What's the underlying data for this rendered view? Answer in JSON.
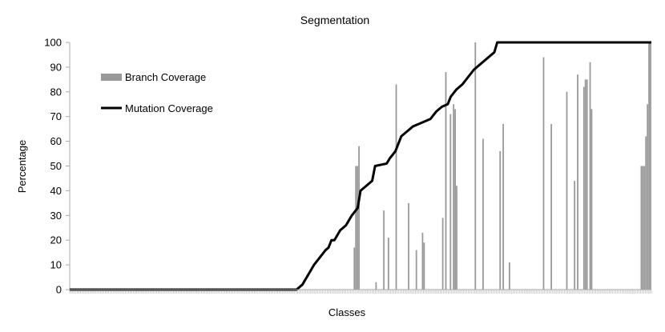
{
  "chart_data": {
    "type": "bar",
    "title": "Segmentation",
    "xlabel": "Classes",
    "ylabel": "Percentage",
    "ylim": [
      0,
      100
    ],
    "yticks": [
      0,
      10,
      20,
      30,
      40,
      50,
      60,
      70,
      80,
      90,
      100
    ],
    "grid": false,
    "legend_position": "top-left",
    "series": [
      {
        "name": "Branch Coverage",
        "kind": "bar",
        "color": "#999999",
        "values": [
          0,
          0,
          0,
          0,
          0,
          0,
          0,
          0,
          0,
          0,
          0,
          0,
          0,
          0,
          0,
          0,
          0,
          0,
          0,
          0,
          0,
          0,
          0,
          0,
          0,
          0,
          0,
          0,
          0,
          0,
          0,
          0,
          0,
          0,
          0,
          0,
          0,
          0,
          0,
          0,
          0,
          0,
          0,
          0,
          0,
          0,
          0,
          0,
          0,
          0,
          0,
          0,
          0,
          0,
          0,
          0,
          0,
          0,
          0,
          0,
          0,
          0,
          0,
          0,
          0,
          0,
          0,
          0,
          0,
          0,
          0,
          0,
          0,
          0,
          0,
          0,
          0,
          0,
          0,
          0,
          0,
          0,
          0,
          0,
          0,
          0,
          0,
          0,
          0,
          0,
          0,
          0,
          0,
          0,
          0,
          0,
          0,
          0,
          0,
          0,
          0,
          0,
          0,
          0,
          0,
          0,
          0,
          0,
          0,
          0,
          0,
          0,
          0,
          0,
          0,
          0,
          0,
          0,
          0,
          0,
          0,
          0,
          0,
          0,
          0,
          0,
          0,
          0,
          0,
          0,
          0,
          0,
          0,
          0,
          0,
          0,
          0,
          0,
          0,
          0,
          0,
          0,
          0,
          0,
          0,
          0,
          0,
          0,
          0,
          0,
          0,
          0,
          0,
          0,
          0,
          0,
          0,
          0,
          0,
          0,
          0,
          0,
          0,
          0,
          0,
          0,
          0,
          0,
          0,
          0,
          0,
          0,
          0,
          0,
          0,
          0,
          0,
          0,
          0,
          0,
          0,
          0,
          0,
          17,
          50,
          50,
          58,
          0,
          0,
          0,
          0,
          0,
          0,
          0,
          0,
          0,
          0,
          3,
          0,
          0,
          0,
          0,
          32,
          0,
          0,
          21,
          0,
          0,
          0,
          0,
          83,
          0,
          0,
          0,
          0,
          0,
          0,
          0,
          35,
          0,
          0,
          0,
          0,
          16,
          0,
          0,
          0,
          23,
          19,
          0,
          0,
          0,
          0,
          0,
          0,
          0,
          0,
          0,
          0,
          0,
          29,
          0,
          88,
          0,
          0,
          71,
          0,
          75,
          73,
          42,
          0,
          0,
          0,
          0,
          0,
          0,
          0,
          0,
          0,
          0,
          0,
          100,
          0,
          0,
          0,
          0,
          61,
          0,
          0,
          0,
          0,
          0,
          0,
          0,
          0,
          0,
          0,
          56,
          0,
          67,
          0,
          0,
          0,
          11,
          0,
          0,
          0,
          0,
          0,
          0,
          0,
          0,
          0,
          0,
          0,
          0,
          0,
          0,
          0,
          0,
          0,
          0,
          0,
          0,
          0,
          94,
          0,
          0,
          0,
          0,
          67,
          0,
          0,
          0,
          0,
          0,
          0,
          0,
          0,
          0,
          80,
          0,
          0,
          0,
          0,
          44,
          0,
          87,
          0,
          0,
          0,
          82,
          85,
          85,
          0,
          92,
          73,
          0,
          0,
          0,
          0,
          0,
          0,
          0,
          0,
          0,
          0,
          0,
          0,
          0,
          0,
          0,
          0,
          0,
          0,
          0,
          0,
          0,
          0,
          0,
          0,
          0,
          0,
          0,
          0,
          0,
          0,
          0,
          50,
          50,
          50,
          62,
          75,
          100,
          100
        ]
      },
      {
        "name": "Mutation Coverage",
        "kind": "line",
        "color": "#000000",
        "points": [
          [
            0,
            0
          ],
          [
            78,
            0
          ],
          [
            80,
            2
          ],
          [
            82,
            6
          ],
          [
            84,
            10
          ],
          [
            86,
            13
          ],
          [
            88,
            16
          ],
          [
            89,
            17
          ],
          [
            90,
            20
          ],
          [
            91,
            20
          ],
          [
            93,
            24
          ],
          [
            95,
            26
          ],
          [
            97,
            30
          ],
          [
            99,
            33
          ],
          [
            100,
            40
          ],
          [
            102,
            42
          ],
          [
            103,
            43
          ],
          [
            104,
            44
          ],
          [
            105,
            50
          ],
          [
            109,
            51
          ],
          [
            110,
            53
          ],
          [
            112,
            56
          ],
          [
            113,
            59
          ],
          [
            114,
            62
          ],
          [
            116,
            64
          ],
          [
            118,
            66
          ],
          [
            120,
            67
          ],
          [
            124,
            69
          ],
          [
            126,
            72
          ],
          [
            128,
            74
          ],
          [
            130,
            75
          ],
          [
            131,
            78
          ],
          [
            133,
            81
          ],
          [
            135,
            83
          ],
          [
            137,
            86
          ],
          [
            139,
            89
          ],
          [
            141,
            91
          ],
          [
            143,
            93
          ],
          [
            145,
            95
          ],
          [
            146,
            96
          ],
          [
            147,
            100
          ],
          [
            200,
            100
          ]
        ]
      }
    ]
  }
}
